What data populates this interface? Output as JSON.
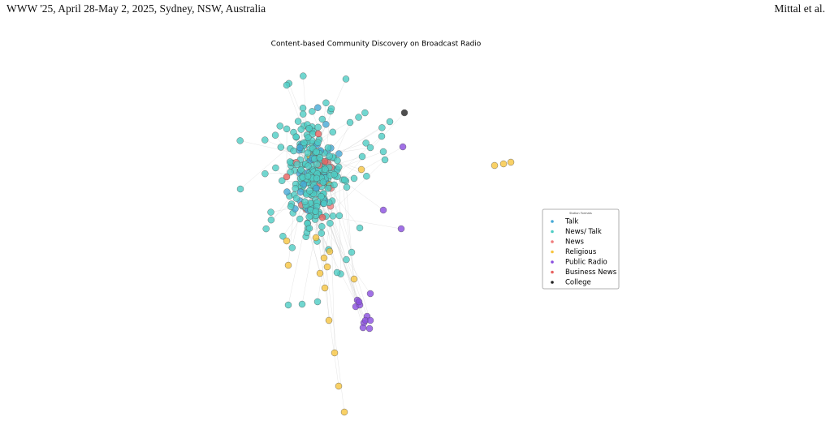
{
  "header": {
    "left": "WWW '25, April 28-May 2, 2025, Sydney, NSW, Australia",
    "right": "Mittal et al."
  },
  "figure": {
    "title": "Content-based Community Discovery on Broadcast Radio",
    "legend": {
      "title": "Station Formats",
      "entries": [
        {
          "label": "Talk",
          "color": "#45a9d6"
        },
        {
          "label": "News/ Talk",
          "color": "#4ecdc4"
        },
        {
          "label": "News",
          "color": "#f07c7c"
        },
        {
          "label": "Religious",
          "color": "#f7c540"
        },
        {
          "label": "Public Radio",
          "color": "#8a4ee0"
        },
        {
          "label": "Business News",
          "color": "#e8615f"
        },
        {
          "label": "College",
          "color": "#222222"
        }
      ]
    }
  }
}
